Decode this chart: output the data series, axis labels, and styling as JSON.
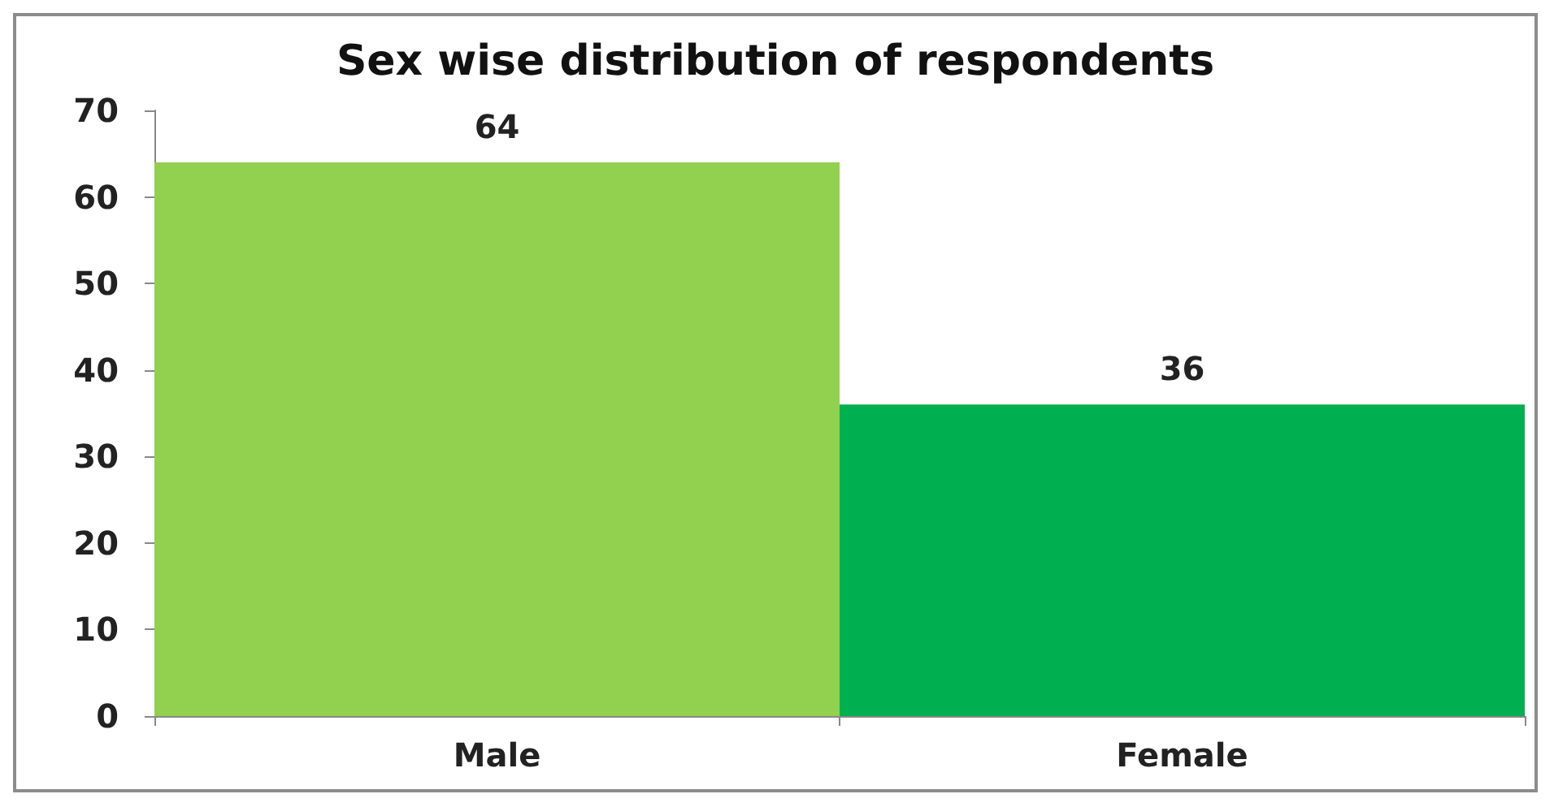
{
  "chart_data": {
    "type": "bar",
    "title": "Sex wise distribution of respondents",
    "categories": [
      "Male",
      "Female"
    ],
    "values": [
      64,
      36
    ],
    "colors": [
      "#92d050",
      "#00b050"
    ],
    "ylim": [
      0,
      70
    ],
    "yticks": [
      0,
      10,
      20,
      30,
      40,
      50,
      60,
      70
    ],
    "data_labels": true
  }
}
